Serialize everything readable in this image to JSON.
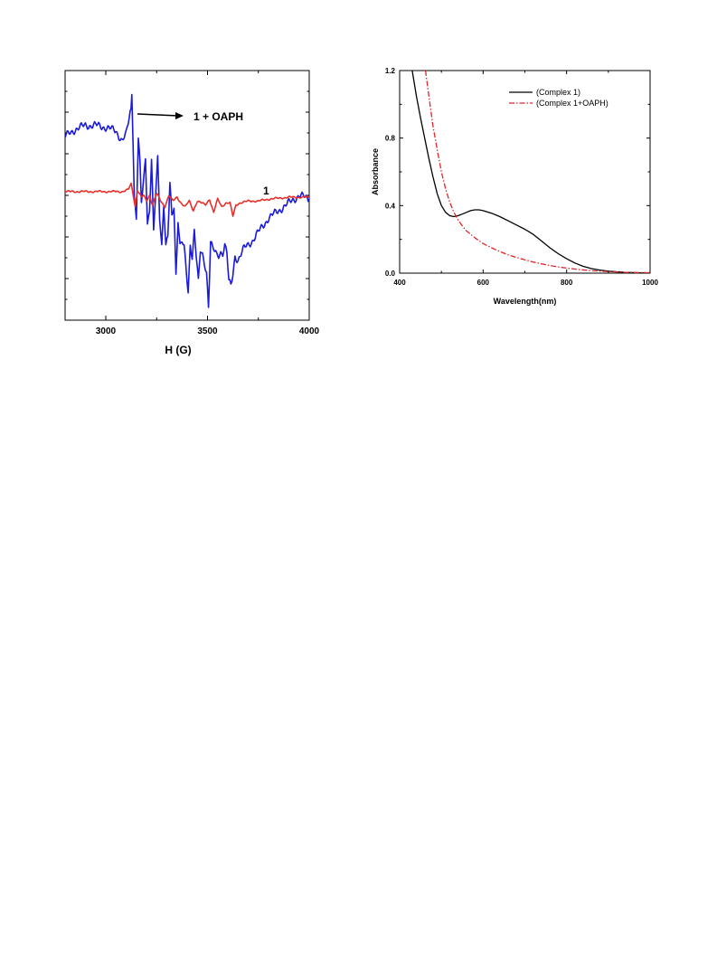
{
  "chart_data": [
    {
      "type": "line",
      "title": "",
      "xlabel": "H (G)",
      "ylabel": "",
      "xlim": [
        2800,
        4000
      ],
      "ylim": [
        -3.3,
        3.3
      ],
      "xticks": [
        3000,
        3500,
        4000
      ],
      "y_tick_labels_shown": false,
      "grid": false,
      "series": [
        {
          "name": "1 + OAPH",
          "color": "#1a1adc",
          "x": [
            2800,
            2850,
            2900,
            2950,
            3000,
            3050,
            3080,
            3100,
            3110,
            3120,
            3128,
            3134,
            3140,
            3150,
            3160,
            3168,
            3175,
            3185,
            3195,
            3205,
            3215,
            3225,
            3235,
            3245,
            3255,
            3265,
            3275,
            3285,
            3295,
            3305,
            3315,
            3325,
            3335,
            3345,
            3355,
            3365,
            3375,
            3385,
            3395,
            3405,
            3415,
            3425,
            3435,
            3445,
            3455,
            3465,
            3475,
            3485,
            3495,
            3505,
            3515,
            3525,
            3535,
            3545,
            3555,
            3565,
            3575,
            3585,
            3595,
            3605,
            3615,
            3625,
            3635,
            3650,
            3680,
            3720,
            3760,
            3800,
            3850,
            3900,
            3950,
            4000
          ],
          "y": [
            1.55,
            1.75,
            1.85,
            1.85,
            1.8,
            1.7,
            1.45,
            1.6,
            1.9,
            2.2,
            2.6,
            1.4,
            0.0,
            -0.6,
            1.5,
            0.9,
            -0.2,
            0.3,
            1.0,
            -0.7,
            -0.4,
            1.0,
            -1.0,
            0.0,
            0.95,
            -0.6,
            -1.3,
            -0.2,
            -1.3,
            -1.1,
            0.3,
            -0.6,
            -0.3,
            -2.1,
            -0.6,
            -1.3,
            -1.2,
            -1.4,
            -2.0,
            -2.6,
            -1.3,
            -1.6,
            -0.9,
            -1.6,
            -2.3,
            -1.5,
            -1.6,
            -1.8,
            -2.0,
            -2.9,
            -1.2,
            -1.4,
            -1.5,
            -1.6,
            -1.6,
            -1.5,
            -1.5,
            -1.3,
            -1.5,
            -2.3,
            -2.4,
            -2.1,
            -1.6,
            -1.7,
            -1.4,
            -1.2,
            -0.9,
            -0.6,
            -0.4,
            -0.2,
            0.0,
            -0.1
          ]
        },
        {
          "name": "1",
          "color": "#e8302a",
          "x": [
            2800,
            2900,
            3000,
            3080,
            3110,
            3125,
            3135,
            3145,
            3155,
            3165,
            3175,
            3185,
            3200,
            3215,
            3230,
            3250,
            3270,
            3290,
            3310,
            3330,
            3350,
            3370,
            3390,
            3410,
            3430,
            3450,
            3470,
            3490,
            3510,
            3530,
            3550,
            3570,
            3590,
            3610,
            3625,
            3640,
            3660,
            3700,
            3750,
            3800,
            3900,
            4000
          ],
          "y": [
            0.1,
            0.1,
            0.1,
            0.1,
            0.15,
            0.3,
            0.0,
            -0.3,
            0.15,
            0.05,
            -0.05,
            0.0,
            -0.15,
            0.0,
            -0.25,
            0.05,
            -0.15,
            -0.3,
            0.0,
            -0.15,
            -0.05,
            -0.2,
            -0.3,
            -0.15,
            -0.4,
            -0.15,
            -0.2,
            -0.25,
            -0.1,
            -0.45,
            -0.1,
            -0.3,
            -0.2,
            -0.2,
            -0.55,
            -0.25,
            -0.2,
            -0.15,
            -0.15,
            -0.1,
            -0.05,
            -0.05
          ]
        }
      ],
      "annotations": [
        {
          "text": "1 + OAPH",
          "arrow": true
        },
        {
          "text": "1"
        }
      ]
    },
    {
      "type": "line",
      "title": "",
      "xlabel": "Wavelength(nm)",
      "ylabel": "Absorbance",
      "xlim": [
        400,
        1000
      ],
      "ylim": [
        0.0,
        1.2
      ],
      "xticks": [
        400,
        600,
        800,
        1000
      ],
      "yticks": [
        0.0,
        0.4,
        0.8,
        1.2
      ],
      "xtick_labels": [
        "400",
        "600",
        "800",
        "1000"
      ],
      "ytick_labels": [
        "0.0",
        "0.4",
        "0.8",
        "1.2"
      ],
      "grid": false,
      "legend_position": "top-right",
      "series": [
        {
          "name": "(Complex 1)",
          "color": "#000000",
          "dash": "solid",
          "x": [
            430,
            440,
            450,
            460,
            470,
            480,
            490,
            500,
            510,
            520,
            530,
            540,
            550,
            560,
            570,
            580,
            590,
            600,
            620,
            640,
            660,
            680,
            700,
            720,
            740,
            760,
            780,
            800,
            820,
            840,
            860,
            880,
            900,
            920,
            940,
            960,
            980,
            1000
          ],
          "y": [
            1.2,
            1.05,
            0.92,
            0.8,
            0.68,
            0.57,
            0.47,
            0.4,
            0.36,
            0.34,
            0.335,
            0.34,
            0.35,
            0.36,
            0.37,
            0.375,
            0.375,
            0.37,
            0.355,
            0.335,
            0.31,
            0.285,
            0.26,
            0.23,
            0.19,
            0.15,
            0.115,
            0.085,
            0.06,
            0.04,
            0.027,
            0.018,
            0.012,
            0.008,
            0.005,
            0.003,
            0.002,
            0.001
          ]
        },
        {
          "name": "(Complex 1+OAPH)",
          "color": "#e0262a",
          "dash": "dash-dot",
          "x": [
            462,
            470,
            480,
            490,
            500,
            510,
            520,
            530,
            540,
            550,
            560,
            580,
            600,
            620,
            640,
            660,
            680,
            700,
            720,
            740,
            760,
            780,
            800,
            820,
            840,
            860,
            880,
            900,
            920,
            940,
            960,
            980,
            1000
          ],
          "y": [
            1.2,
            1.05,
            0.87,
            0.73,
            0.6,
            0.5,
            0.42,
            0.36,
            0.315,
            0.28,
            0.25,
            0.21,
            0.175,
            0.15,
            0.128,
            0.108,
            0.093,
            0.079,
            0.066,
            0.055,
            0.045,
            0.037,
            0.03,
            0.024,
            0.019,
            0.015,
            0.012,
            0.009,
            0.007,
            0.005,
            0.004,
            0.003,
            0.002
          ]
        }
      ]
    }
  ]
}
